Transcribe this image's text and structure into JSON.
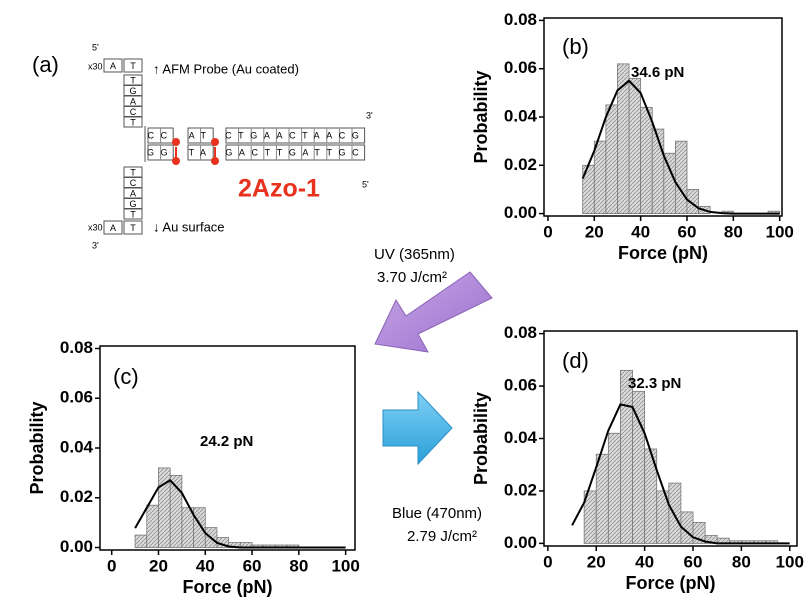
{
  "panel_a": {
    "label": "(a)",
    "top_left_end": "5'",
    "bottom_left_end": "3'",
    "top_right_end": "3'",
    "bottom_right_end": "5'",
    "repeat_top": "x30",
    "repeat_bottom": "x30",
    "linker_top": [
      "A",
      "T"
    ],
    "linker_bottom": [
      "A",
      "T"
    ],
    "probe_column": [
      "T",
      "G",
      "A",
      "C",
      "T"
    ],
    "surface_column": [
      "T",
      "C",
      "A",
      "G",
      "T"
    ],
    "top_strand": [
      "CC",
      "AT",
      "CTGAACTAACG"
    ],
    "bottom_strand": [
      "GG",
      "TA",
      "GACTTGATTGC"
    ],
    "probe_label": "↑ AFM  Probe (Au coated)",
    "surface_label": "↓ Au surface",
    "name": "2Azo-1"
  },
  "arrows": {
    "uv": [
      "UV (365nm)",
      "3.70 J/cm²"
    ],
    "blue": [
      "Blue (470nm)",
      "2.79 J/cm²"
    ]
  },
  "chart_data": [
    {
      "type": "histogram",
      "label": "(b)",
      "annotation": "34.6 pN",
      "xlabel": "Force (pN)",
      "ylabel": "Probability",
      "color": "#d9d9d9",
      "bins": [
        15,
        20,
        25,
        30,
        35,
        40,
        45,
        50,
        55,
        60,
        65,
        70,
        75,
        80,
        85,
        90,
        95,
        100
      ],
      "counts": [
        0.02,
        0.03,
        0.045,
        0.062,
        0.056,
        0.044,
        0.035,
        0.025,
        0.03,
        0.01,
        0.003,
        0,
        0.001,
        0,
        0,
        0,
        0.001
      ],
      "curve": {
        "x": [
          15,
          20,
          25,
          30,
          35,
          40,
          45,
          50,
          55,
          60,
          65,
          70,
          75,
          80,
          85,
          90,
          95,
          100
        ],
        "values": [
          0.0145,
          0.026,
          0.04,
          0.051,
          0.055,
          0.05,
          0.038,
          0.024,
          0.013,
          0.0058,
          0.0022,
          0.0007,
          0.0002,
          0,
          0,
          0,
          0,
          0
        ]
      },
      "xlim": [
        -1.7,
        101
      ],
      "ylim": [
        -0.001,
        0.081
      ],
      "xticks": [
        0,
        20,
        40,
        60,
        80,
        100
      ],
      "yticks": [
        {
          "value": 0,
          "label": "0.00"
        },
        {
          "value": 0.02,
          "label": "0.02"
        },
        {
          "value": 0.04,
          "label": "0.04"
        },
        {
          "value": 0.06,
          "label": "0.06"
        },
        {
          "value": 0.08,
          "label": "0.08"
        }
      ]
    },
    {
      "type": "histogram",
      "label": "(c)",
      "annotation": "24.2 pN",
      "xlabel": "Force (pN)",
      "ylabel": "Probability",
      "color": "#d9d9d9",
      "bins": [
        10,
        15,
        20,
        25,
        30,
        35,
        40,
        45,
        50,
        55,
        60,
        65,
        70,
        75,
        80,
        85,
        90,
        95,
        100
      ],
      "counts": [
        0.005,
        0.017,
        0.032,
        0.029,
        0.016,
        0.016,
        0.008,
        0.004,
        0.002,
        0.002,
        0.001,
        0.001,
        0.001,
        0.001,
        0,
        0,
        0,
        0
      ],
      "curve": {
        "x": [
          10,
          15,
          20,
          25,
          30,
          35,
          40,
          45,
          50,
          55,
          60,
          65,
          70,
          75,
          80,
          85,
          90,
          95,
          100
        ],
        "values": [
          0.0078,
          0.016,
          0.0242,
          0.027,
          0.0219,
          0.0131,
          0.0058,
          0.0019,
          0.0004,
          0,
          0,
          0,
          0,
          0,
          0,
          0,
          0,
          0,
          0
        ]
      },
      "xlim": [
        -5,
        104
      ],
      "ylim": [
        -0.001,
        0.081
      ],
      "xticks": [
        0,
        20,
        40,
        60,
        80,
        100
      ],
      "yticks": [
        {
          "value": 0,
          "label": "0.00"
        },
        {
          "value": 0.02,
          "label": "0.02"
        },
        {
          "value": 0.04,
          "label": "0.04"
        },
        {
          "value": 0.06,
          "label": "0.06"
        },
        {
          "value": 0.08,
          "label": "0.08"
        }
      ]
    },
    {
      "type": "histogram",
      "label": "(d)",
      "annotation": "32.3 pN",
      "xlabel": "Force (pN)",
      "ylabel": "Probability",
      "color": "#d9d9d9",
      "bins": [
        15,
        20,
        25,
        30,
        35,
        40,
        45,
        50,
        55,
        60,
        65,
        70,
        75,
        80,
        85,
        90,
        95,
        100
      ],
      "counts": [
        0.02,
        0.034,
        0.042,
        0.066,
        0.058,
        0.036,
        0.02,
        0.023,
        0.012,
        0.008,
        0.003,
        0.002,
        0.001,
        0.001,
        0.001,
        0.001,
        0
      ],
      "curve": {
        "x": [
          10,
          15,
          20,
          25,
          30,
          35,
          40,
          45,
          50,
          55,
          60,
          65,
          70,
          75,
          80,
          85,
          90,
          95,
          100
        ],
        "values": [
          0.0069,
          0.0156,
          0.029,
          0.043,
          0.053,
          0.052,
          0.042,
          0.028,
          0.0148,
          0.0064,
          0.0023,
          0.0007,
          0,
          0,
          0,
          0,
          0,
          0,
          0
        ]
      },
      "xlim": [
        -1.6,
        103
      ],
      "ylim": [
        -0.001,
        0.081
      ],
      "xticks": [
        0,
        20,
        40,
        60,
        80,
        100
      ],
      "yticks": [
        {
          "value": 0,
          "label": "0.00"
        },
        {
          "value": 0.02,
          "label": "0.02"
        },
        {
          "value": 0.04,
          "label": "0.04"
        },
        {
          "value": 0.06,
          "label": "0.06"
        },
        {
          "value": 0.08,
          "label": "0.08"
        }
      ]
    }
  ]
}
